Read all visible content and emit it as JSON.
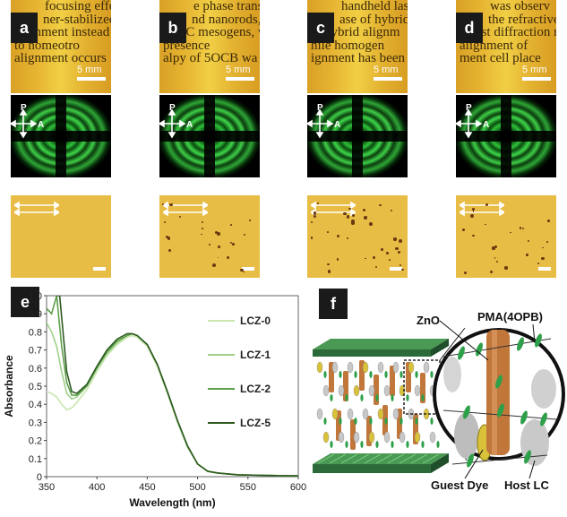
{
  "panels": [
    {
      "label": "a",
      "scale": "5 mm",
      "lines": [
        "focusing effec",
        "ner-stabilized",
        "alignment instead",
        "to homeotro",
        "alignment occurs"
      ]
    },
    {
      "label": "b",
      "scale": "5 mm",
      "lines": [
        "e phase transi",
        "nd nanorods, e",
        "of LC mesogens, w",
        "presence   ",
        "alpy of 5OCB wa"
      ]
    },
    {
      "label": "c",
      "scale": "5 mm",
      "lines": [
        "handheld laser ",
        "ase of hybrid n",
        "r. Hybrid alignm",
        "hile homogen",
        "ignment has been"
      ]
    },
    {
      "label": "d",
      "scale": "5 mm",
      "lines": [
        "  was observ",
        "the refractive",
        "e first diffraction r",
        "alignment of ",
        "ment cell place"
      ]
    }
  ],
  "conoscope": {
    "p_label": "P",
    "a_label": "A"
  },
  "chart_panel_label": "e",
  "schematic_panel_label": "f",
  "chart_data": {
    "type": "line",
    "xlabel": "Wavelength (nm)",
    "ylabel": "Absorbance",
    "xlim": [
      350,
      600
    ],
    "ylim": [
      0,
      1.0
    ],
    "xticks": [
      350,
      400,
      450,
      500,
      550,
      600
    ],
    "yticks": [
      0,
      0.1,
      0.2,
      0.3,
      0.4,
      0.5,
      0.6,
      0.7,
      0.8,
      0.9,
      1.0
    ],
    "ytick_labels": [
      "0",
      "0.1",
      "0.2",
      "0.3",
      "0.4",
      "0.5",
      "0.6",
      "0.7",
      "0.8",
      "0.9",
      "1.0"
    ],
    "legend_position": "right",
    "series": [
      {
        "name": "LCZ-0",
        "color": "#c9e6b0",
        "x": [
          350,
          355,
          360,
          365,
          370,
          375,
          380,
          390,
          400,
          410,
          420,
          430,
          435,
          440,
          450,
          460,
          470,
          480,
          490,
          500,
          510,
          520,
          530,
          540,
          560,
          580,
          600
        ],
        "y": [
          0.47,
          0.46,
          0.44,
          0.4,
          0.37,
          0.38,
          0.41,
          0.48,
          0.58,
          0.67,
          0.73,
          0.77,
          0.78,
          0.77,
          0.72,
          0.61,
          0.46,
          0.3,
          0.16,
          0.07,
          0.03,
          0.02,
          0.015,
          0.01,
          0.008,
          0.006,
          0.005
        ]
      },
      {
        "name": "LCZ-1",
        "color": "#9fd08a",
        "x": [
          350,
          355,
          360,
          365,
          370,
          375,
          380,
          390,
          400,
          410,
          420,
          430,
          435,
          440,
          450,
          460,
          470,
          480,
          490,
          500,
          510,
          520,
          530,
          540,
          560,
          580,
          600
        ],
        "y": [
          0.85,
          0.8,
          0.72,
          0.58,
          0.46,
          0.43,
          0.44,
          0.5,
          0.6,
          0.68,
          0.74,
          0.78,
          0.79,
          0.78,
          0.73,
          0.62,
          0.47,
          0.31,
          0.17,
          0.07,
          0.03,
          0.02,
          0.015,
          0.01,
          0.008,
          0.006,
          0.005
        ]
      },
      {
        "name": "LCZ-2",
        "color": "#5e9f4a",
        "x": [
          350,
          355,
          360,
          365,
          370,
          375,
          380,
          390,
          400,
          410,
          420,
          430,
          435,
          440,
          450,
          460,
          470,
          480,
          490,
          500,
          510,
          520,
          530,
          540,
          560,
          580,
          600
        ],
        "y": [
          0.93,
          0.9,
          1.0,
          0.72,
          0.52,
          0.45,
          0.45,
          0.5,
          0.6,
          0.69,
          0.75,
          0.78,
          0.79,
          0.78,
          0.73,
          0.62,
          0.47,
          0.31,
          0.17,
          0.07,
          0.03,
          0.02,
          0.015,
          0.01,
          0.008,
          0.006,
          0.005
        ]
      },
      {
        "name": "LCZ-5",
        "color": "#2e5a22",
        "x": [
          360,
          363,
          366,
          370,
          375,
          380,
          390,
          400,
          410,
          420,
          430,
          435,
          440,
          450,
          460,
          470,
          480,
          490,
          500,
          510,
          520,
          530,
          540,
          560,
          580,
          600
        ],
        "y": [
          1.0,
          1.0,
          0.82,
          0.58,
          0.47,
          0.46,
          0.51,
          0.61,
          0.7,
          0.76,
          0.79,
          0.79,
          0.78,
          0.73,
          0.62,
          0.47,
          0.31,
          0.17,
          0.07,
          0.03,
          0.02,
          0.015,
          0.01,
          0.008,
          0.006,
          0.005
        ]
      }
    ]
  },
  "schematic": {
    "labels": {
      "zno": "ZnO",
      "pma": "PMA(4OPB)",
      "guest": "Guest Dye",
      "host": "Host LC"
    },
    "colors": {
      "zno": "#c1763a",
      "plate": "#2d6a3a",
      "green": "#2fa04a",
      "grey": "#c8c8c8",
      "dye": "#d9c23a"
    }
  }
}
